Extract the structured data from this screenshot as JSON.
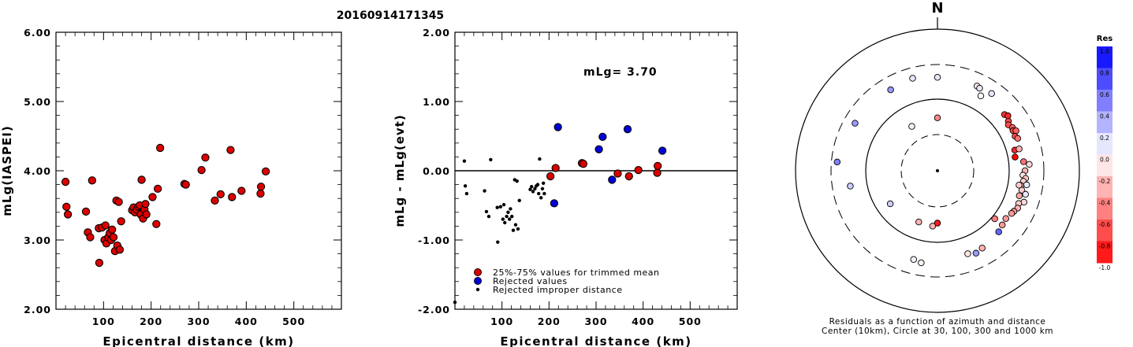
{
  "figure_title": "20160914171345",
  "colors": {
    "kept_fill": "#dd0000",
    "rejected_fill": "#0000dd",
    "improper_fill": "#000000",
    "zero_line": "#000000"
  },
  "chart_data": [
    {
      "type": "scatter",
      "xlabel": "Epicentral distance (km)",
      "ylabel": "mLg(IASPEI)",
      "xlim": [
        0,
        600
      ],
      "ylim": [
        2.0,
        6.0
      ],
      "xticks": [
        "100",
        "200",
        "300",
        "400",
        "500"
      ],
      "yticks": [
        "2.00",
        "3.00",
        "4.00",
        "5.00",
        "6.00"
      ],
      "series": [
        {
          "points": [
            [
              20,
              3.84
            ],
            [
              22,
              3.48
            ],
            [
              25,
              3.37
            ],
            [
              63,
              3.41
            ],
            [
              67,
              3.11
            ],
            [
              72,
              3.04
            ],
            [
              76,
              3.86
            ],
            [
              90,
              3.17
            ],
            [
              91,
              2.67
            ],
            [
              97,
              3.18
            ],
            [
              102,
              3.0
            ],
            [
              104,
              3.21
            ],
            [
              106,
              2.95
            ],
            [
              110,
              3.04
            ],
            [
              113,
              3.1
            ],
            [
              116,
              3.0
            ],
            [
              118,
              3.15
            ],
            [
              121,
              3.04
            ],
            [
              124,
              2.84
            ],
            [
              127,
              3.57
            ],
            [
              129,
              2.92
            ],
            [
              132,
              3.55
            ],
            [
              134,
              2.86
            ],
            [
              137,
              3.27
            ],
            [
              160,
              3.43
            ],
            [
              163,
              3.47
            ],
            [
              166,
              3.4
            ],
            [
              170,
              3.44
            ],
            [
              173,
              3.48
            ],
            [
              176,
              3.5
            ],
            [
              178,
              3.37
            ],
            [
              180,
              3.87
            ],
            [
              183,
              3.31
            ],
            [
              186,
              3.44
            ],
            [
              188,
              3.52
            ],
            [
              190,
              3.37
            ],
            [
              203,
              3.62
            ],
            [
              211,
              3.23
            ],
            [
              214,
              3.74
            ],
            [
              219,
              4.33
            ],
            [
              270,
              3.81
            ],
            [
              273,
              3.8
            ],
            [
              306,
              4.01
            ],
            [
              314,
              4.19
            ],
            [
              334,
              3.57
            ],
            [
              346,
              3.66
            ],
            [
              367,
              4.3
            ],
            [
              370,
              3.62
            ],
            [
              390,
              3.71
            ],
            [
              430,
              3.67
            ],
            [
              431,
              3.77
            ],
            [
              441,
              3.99
            ]
          ]
        }
      ]
    },
    {
      "type": "scatter",
      "xlabel": "Epicentral distance (km)",
      "ylabel": "mLg - mLg(evt)",
      "annotation": "mLg= 3.70",
      "xlim": [
        0,
        600
      ],
      "ylim": [
        -2.0,
        2.0
      ],
      "xticks": [
        "100",
        "200",
        "300",
        "400",
        "500"
      ],
      "yticks": [
        "-2.00",
        "-1.00",
        "0.00",
        "1.00",
        "2.00"
      ],
      "legend_position": "bottom-left",
      "series": [
        {
          "name": "25%-75% values for trimmed mean",
          "marker": "red-circle",
          "points": [
            [
              203,
              -0.08
            ],
            [
              214,
              0.04
            ],
            [
              270,
              0.11
            ],
            [
              273,
              0.1
            ],
            [
              346,
              -0.04
            ],
            [
              370,
              -0.08
            ],
            [
              390,
              0.01
            ],
            [
              430,
              -0.03
            ],
            [
              431,
              0.07
            ]
          ]
        },
        {
          "name": "Rejected values",
          "marker": "blue-circle",
          "points": [
            [
              211,
              -0.47
            ],
            [
              219,
              0.63
            ],
            [
              306,
              0.31
            ],
            [
              314,
              0.49
            ],
            [
              334,
              -0.13
            ],
            [
              367,
              0.6
            ],
            [
              441,
              0.29
            ]
          ]
        },
        {
          "name": "Rejected improper distance",
          "marker": "small-black-dot",
          "points": [
            [
              0,
              -1.9
            ],
            [
              20,
              0.14
            ],
            [
              22,
              -0.22
            ],
            [
              25,
              -0.33
            ],
            [
              63,
              -0.29
            ],
            [
              67,
              -0.59
            ],
            [
              72,
              -0.66
            ],
            [
              76,
              0.16
            ],
            [
              90,
              -0.53
            ],
            [
              91,
              -1.03
            ],
            [
              97,
              -0.52
            ],
            [
              102,
              -0.7
            ],
            [
              104,
              -0.49
            ],
            [
              106,
              -0.75
            ],
            [
              110,
              -0.66
            ],
            [
              113,
              -0.6
            ],
            [
              116,
              -0.7
            ],
            [
              118,
              -0.55
            ],
            [
              121,
              -0.66
            ],
            [
              124,
              -0.86
            ],
            [
              127,
              -0.13
            ],
            [
              129,
              -0.78
            ],
            [
              132,
              -0.15
            ],
            [
              134,
              -0.84
            ],
            [
              137,
              -0.43
            ],
            [
              160,
              -0.27
            ],
            [
              163,
              -0.23
            ],
            [
              166,
              -0.3
            ],
            [
              170,
              -0.26
            ],
            [
              173,
              -0.22
            ],
            [
              176,
              -0.2
            ],
            [
              178,
              -0.33
            ],
            [
              180,
              0.17
            ],
            [
              183,
              -0.39
            ],
            [
              186,
              -0.26
            ],
            [
              188,
              -0.18
            ],
            [
              190,
              -0.33
            ]
          ]
        }
      ]
    },
    {
      "type": "scatter",
      "subtype": "polar",
      "north_label": "N",
      "caption_line1": "Residuals as a function of azimuth and distance",
      "caption_line2": "Center (10km), Circle at 30, 100, 300 and 1000 km",
      "colorbar_title": "Res",
      "colorbar_ticks": [
        "1.0",
        "0.8",
        "0.6",
        "0.4",
        "0.2",
        "0.0",
        "-0.2",
        "-0.4",
        "-0.6",
        "-0.8",
        "-1.0"
      ],
      "rings_km": [
        30,
        100,
        300,
        1000
      ],
      "points_azimuth_distance_residual": [
        [
          0,
          53,
          -0.47
        ],
        [
          180,
          52,
          -0.9
        ],
        [
          200,
          56,
          -0.3
        ],
        [
          185,
          58,
          -0.3
        ],
        [
          330,
          50,
          0.05
        ],
        [
          235,
          62,
          0.2
        ],
        [
          50,
          165,
          -0.8
        ],
        [
          55,
          160,
          -0.7
        ],
        [
          57,
          150,
          -0.7
        ],
        [
          60,
          160,
          -0.6
        ],
        [
          62,
          155,
          -0.75
        ],
        [
          63,
          168,
          -0.6
        ],
        [
          66,
          152,
          -0.7
        ],
        [
          68,
          160,
          -0.55
        ],
        [
          52,
          175,
          -0.85
        ],
        [
          75,
          130,
          -0.85
        ],
        [
          80,
          125,
          -1.0
        ],
        [
          84,
          160,
          -0.55
        ],
        [
          86,
          190,
          -0.15
        ],
        [
          90,
          165,
          -0.3
        ],
        [
          93,
          155,
          -0.1
        ],
        [
          95,
          170,
          -0.2
        ],
        [
          97,
          160,
          -0.2
        ],
        [
          99,
          180,
          0.1
        ],
        [
          100,
          150,
          -0.3
        ],
        [
          103,
          160,
          -0.2
        ],
        [
          105,
          185,
          0.1
        ],
        [
          107,
          155,
          -0.35
        ],
        [
          110,
          190,
          -0.15
        ],
        [
          112,
          165,
          -0.2
        ],
        [
          115,
          170,
          -0.3
        ],
        [
          118,
          160,
          -0.4
        ],
        [
          120,
          155,
          -0.4
        ],
        [
          125,
          145,
          -0.4
        ],
        [
          130,
          150,
          -0.4
        ],
        [
          135,
          160,
          0.6
        ],
        [
          130,
          110,
          -0.5
        ],
        [
          150,
          175,
          -0.3
        ],
        [
          155,
          185,
          0.4
        ],
        [
          160,
          170,
          -0.1
        ],
        [
          190,
          200,
          -0.05
        ],
        [
          195,
          190,
          0.05
        ],
        [
          300,
          210,
          0.4
        ],
        [
          260,
          170,
          0.2
        ],
        [
          275,
          250,
          0.5
        ],
        [
          330,
          200,
          0.4
        ],
        [
          345,
          215,
          0.1
        ],
        [
          360,
          200,
          0.1
        ],
        [
          25,
          200,
          -0.1
        ],
        [
          27,
          195,
          0.1
        ],
        [
          30,
          160,
          0.0
        ],
        [
          35,
          205,
          0.1
        ],
        [
          75,
          150,
          -0.3
        ],
        [
          100,
          142,
          -0.2
        ]
      ]
    }
  ]
}
